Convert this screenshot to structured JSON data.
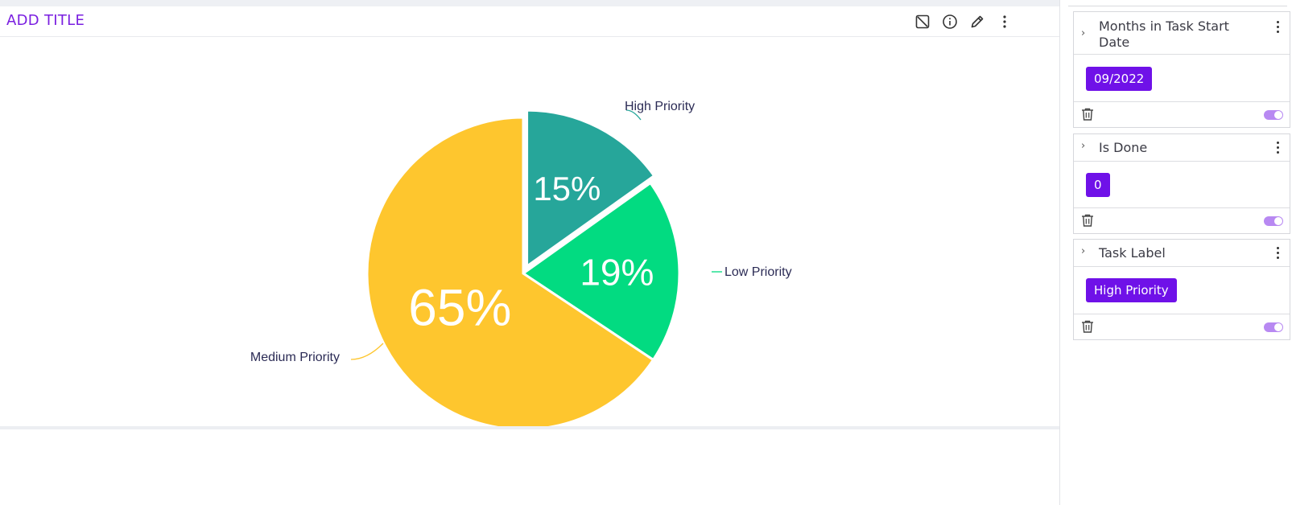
{
  "widget": {
    "title": "ADD TITLE",
    "toolbar_icons": [
      "resize-icon",
      "info-icon",
      "edit-pencil-icon",
      "more-vert-icon"
    ]
  },
  "chart_data": {
    "type": "pie",
    "slices": [
      {
        "label": "High Priority",
        "value": 15,
        "display": "15%",
        "color": "#26a69a"
      },
      {
        "label": "Low Priority",
        "value": 19,
        "display": "19%",
        "color": "#02db81"
      },
      {
        "label": "Medium Priority",
        "value": 65,
        "display": "65%",
        "color": "#fec62e"
      }
    ],
    "exploded": "High Priority",
    "legend": "none"
  },
  "filters": [
    {
      "title": "Months in Task Start Date",
      "value": "09/2022",
      "enabled": true
    },
    {
      "title": "Is Done",
      "value": "0",
      "enabled": true
    },
    {
      "title": "Task Label",
      "value": "High Priority",
      "enabled": true
    }
  ],
  "colors": {
    "accent": "#6f11e8",
    "title": "#7a1fe0",
    "toggle": "#b889f2"
  }
}
